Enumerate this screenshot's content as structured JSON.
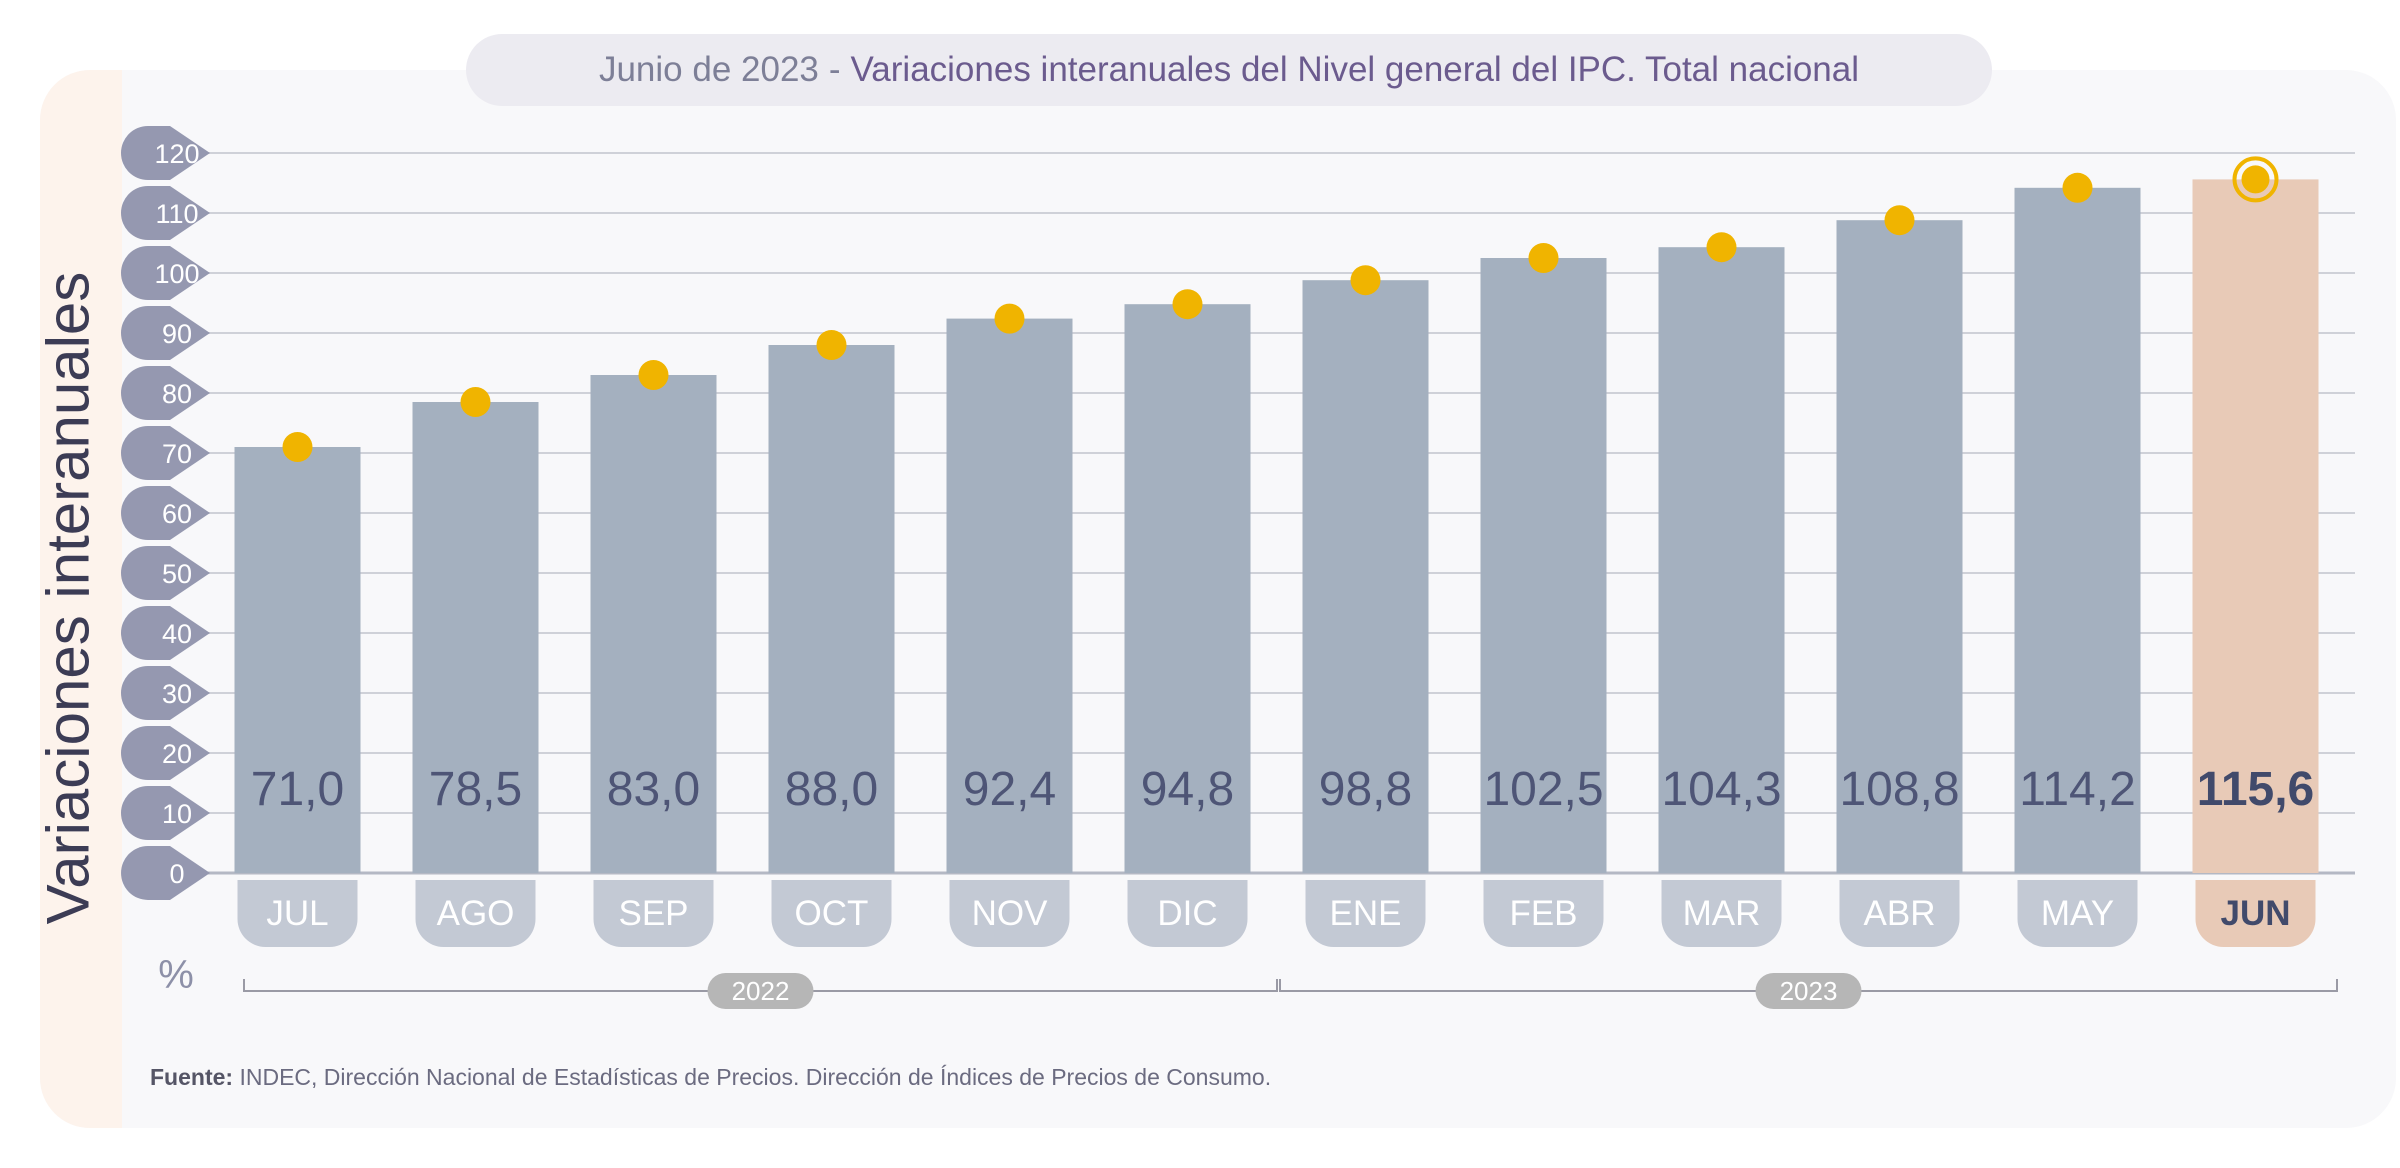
{
  "title": {
    "prefix": "Junio de 2023",
    "separator": "-",
    "main": "Variaciones interanuales del Nivel general del IPC. Total nacional"
  },
  "colors": {
    "bar": "#a4b0bf",
    "highlight_bar": "#e8cab7",
    "dot": "#f0b400",
    "tick_badge": "#9598b0",
    "month_badge": "#c3c9d4",
    "year_badge": "#b6b6b6",
    "value_text": "#4e5576",
    "highlight_text": "#414a6b"
  },
  "chart_data": {
    "type": "bar",
    "ylabel": "Variaciones interanuales",
    "unit": "%",
    "ylim": [
      0,
      120
    ],
    "yticks": [
      0,
      10,
      20,
      30,
      40,
      50,
      60,
      70,
      80,
      90,
      100,
      110,
      120
    ],
    "grid": true,
    "categories": [
      "JUL",
      "AGO",
      "SEP",
      "OCT",
      "NOV",
      "DIC",
      "ENE",
      "FEB",
      "MAR",
      "ABR",
      "MAY",
      "JUN"
    ],
    "values": [
      71.0,
      78.5,
      83.0,
      88.0,
      92.4,
      94.8,
      98.8,
      102.5,
      104.3,
      108.8,
      114.2,
      115.6
    ],
    "value_labels": [
      "71,0",
      "78,5",
      "83,0",
      "88,0",
      "92,4",
      "94,8",
      "98,8",
      "102,5",
      "104,3",
      "108,8",
      "114,2",
      "115,6"
    ],
    "highlight_category": "JUN",
    "year_groups": [
      {
        "label": "2022",
        "categories": [
          "JUL",
          "AGO",
          "SEP",
          "OCT",
          "NOV",
          "DIC"
        ]
      },
      {
        "label": "2023",
        "categories": [
          "ENE",
          "FEB",
          "MAR",
          "ABR",
          "MAY",
          "JUN"
        ]
      }
    ]
  },
  "footer": {
    "label": "Fuente:",
    "text": "INDEC, Dirección Nacional de Estadísticas de Precios. Dirección de Índices de Precios de Consumo."
  }
}
